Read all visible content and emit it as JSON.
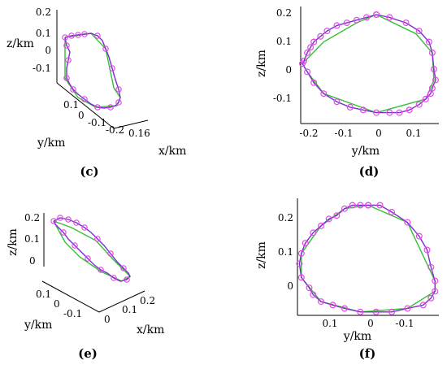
{
  "chart_data": [
    {
      "panel_label": "(c)",
      "type": "line",
      "projection": "3d",
      "xlabel": "x/km",
      "ylabel": "y/km",
      "zlabel": "z/km",
      "ticks": {
        "z": [
          "0.2",
          "0.1",
          "0",
          "-0.1"
        ],
        "y": [
          "0.1",
          "0",
          "-0.1",
          "-0.2"
        ],
        "x": [
          "0.16"
        ]
      },
      "series": [
        {
          "role": "trajectory",
          "color": "#7b2bd6",
          "marker_color": "#e14be0"
        },
        {
          "role": "fit",
          "color": "#34c034"
        }
      ]
    },
    {
      "panel_label": "(d)",
      "type": "line",
      "projection": "y-z",
      "xlabel": "y/km",
      "ylabel": "z/km",
      "ticks": {
        "x": [
          "-0.2",
          "-0.1",
          "0",
          "0.1"
        ],
        "y": [
          "0.2",
          "0.1",
          "0",
          "-0.1"
        ]
      },
      "xlim": [
        -0.23,
        0.19
      ],
      "ylim": [
        -0.2,
        0.23
      ],
      "series": [
        {
          "role": "trajectory",
          "color": "#7b2bd6",
          "marker_color": "#e14be0",
          "x": [
            0.0,
            0.04,
            0.09,
            0.13,
            0.16,
            0.17,
            0.175,
            0.18,
            0.17,
            0.165,
            0.15,
            0.13,
            0.1,
            0.07,
            0.04,
            0.0,
            -0.04,
            -0.08,
            -0.12,
            -0.16,
            -0.19,
            -0.21,
            -0.225,
            -0.22,
            -0.21,
            -0.2,
            -0.19,
            -0.17,
            -0.15,
            -0.12,
            -0.09,
            -0.06,
            -0.03,
            0.0
          ],
          "y": [
            0.2,
            0.19,
            0.17,
            0.14,
            0.1,
            0.06,
            0.0,
            -0.04,
            -0.07,
            -0.09,
            -0.11,
            -0.13,
            -0.15,
            -0.16,
            -0.16,
            -0.16,
            -0.15,
            -0.14,
            -0.12,
            -0.09,
            -0.05,
            -0.01,
            0.02,
            0.03,
            0.06,
            0.08,
            0.1,
            0.12,
            0.14,
            0.16,
            0.17,
            0.18,
            0.19,
            0.2
          ]
        },
        {
          "role": "fit",
          "color": "#34c034",
          "x": [
            0.0,
            0.12,
            0.17,
            0.175,
            0.15,
            0.0,
            -0.16,
            -0.21,
            -0.225,
            -0.16,
            -0.06,
            0.0
          ],
          "y": [
            0.2,
            0.13,
            0.06,
            -0.04,
            -0.11,
            -0.16,
            -0.09,
            -0.01,
            0.02,
            0.1,
            0.17,
            0.2
          ]
        }
      ]
    },
    {
      "panel_label": "(e)",
      "type": "line",
      "projection": "3d",
      "xlabel": "x/km",
      "ylabel": "y/km",
      "zlabel": "z/km",
      "ticks": {
        "z": [
          "0.2",
          "0.1",
          "0"
        ],
        "y": [
          "0.1",
          "0",
          "-0.1"
        ],
        "x": [
          "0",
          "0.1",
          "0.2"
        ]
      },
      "series": [
        {
          "role": "trajectory",
          "color": "#7b2bd6",
          "marker_color": "#e14be0"
        },
        {
          "role": "fit",
          "color": "#34c034"
        }
      ]
    },
    {
      "panel_label": "(f)",
      "type": "line",
      "projection": "y-z",
      "xlabel": "y/km",
      "ylabel": "z/km",
      "ticks": {
        "x": [
          "0.1",
          "0",
          "-0.1"
        ],
        "y": [
          "0.2",
          "0.1",
          "0"
        ]
      },
      "xlim": [
        0.18,
        -0.18
      ],
      "ylim": [
        -0.07,
        0.27
      ],
      "series": [
        {
          "role": "trajectory",
          "color": "#7b2bd6",
          "marker_color": "#e14be0",
          "x": [
            0.0,
            -0.03,
            -0.06,
            -0.1,
            -0.13,
            -0.15,
            -0.16,
            -0.17,
            -0.17,
            -0.16,
            -0.14,
            -0.1,
            -0.06,
            -0.02,
            0.02,
            0.06,
            0.09,
            0.12,
            0.14,
            0.15,
            0.17,
            0.175,
            0.17,
            0.16,
            0.14,
            0.12,
            0.1,
            0.08,
            0.06,
            0.04,
            0.02,
            0.0
          ],
          "y": [
            0.25,
            0.25,
            0.23,
            0.2,
            0.16,
            0.12,
            0.07,
            0.03,
            0.0,
            -0.02,
            -0.04,
            -0.05,
            -0.06,
            -0.06,
            -0.06,
            -0.05,
            -0.04,
            -0.03,
            -0.01,
            0.01,
            0.04,
            0.08,
            0.11,
            0.14,
            0.17,
            0.19,
            0.21,
            0.22,
            0.24,
            0.25,
            0.25,
            0.25
          ]
        },
        {
          "role": "fit",
          "color": "#34c034",
          "x": [
            0.0,
            -0.1,
            -0.17,
            -0.17,
            -0.1,
            0.02,
            0.12,
            0.17,
            0.17,
            0.12,
            0.06,
            0.0
          ],
          "y": [
            0.25,
            0.2,
            0.03,
            0.0,
            -0.05,
            -0.06,
            -0.03,
            0.04,
            0.11,
            0.19,
            0.24,
            0.25
          ]
        }
      ]
    }
  ]
}
